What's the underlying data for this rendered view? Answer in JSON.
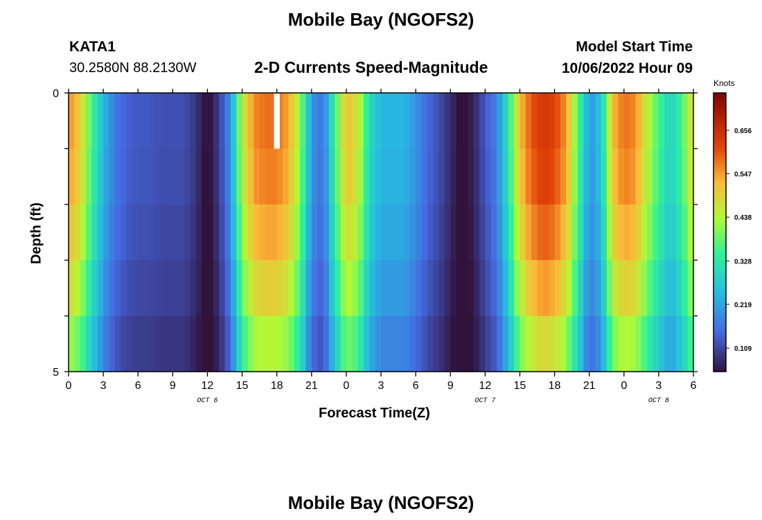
{
  "page": {
    "title": "Mobile Bay (NGOFS2)",
    "station": "KATA1",
    "coords": "30.2580N  88.2130W",
    "subtitle": "2-D Currents Speed-Magnitude",
    "model_label": "Model Start Time",
    "model_time": "10/06/2022 Hour 09",
    "bottom_title": "Mobile Bay (NGOFS2)"
  },
  "chart_data": {
    "type": "heatmap",
    "title": "2-D Currents Speed-Magnitude",
    "xlabel": "Forecast Time(Z)",
    "ylabel": "Depth (ft)",
    "x_tick_labels": [
      "0",
      "3",
      "6",
      "9",
      "12",
      "15",
      "18",
      "21",
      "0",
      "3",
      "6",
      "9",
      "12",
      "15",
      "18",
      "21",
      "0",
      "3",
      "6"
    ],
    "x_hours": [
      0,
      3,
      6,
      9,
      12,
      15,
      18,
      21,
      24,
      27,
      30,
      33,
      36,
      39,
      42,
      45,
      48,
      51,
      54
    ],
    "xlim": [
      0,
      54
    ],
    "date_labels": [
      {
        "text": "OCT 6",
        "hour": 12
      },
      {
        "text": "OCT 7",
        "hour": 36
      },
      {
        "text": "OCT 8",
        "hour": 51
      }
    ],
    "y_tick_labels": [
      "0",
      "5"
    ],
    "ylim": [
      0,
      5
    ],
    "depth_layers": [
      0,
      1,
      2,
      3,
      4
    ],
    "colorbar": {
      "label": "Knots",
      "ticks": [
        "0.109",
        "0.219",
        "0.328",
        "0.438",
        "0.547",
        "0.656"
      ],
      "tick_values": [
        0.109,
        0.219,
        0.328,
        0.438,
        0.547,
        0.656
      ],
      "range": [
        0.05,
        0.75
      ]
    },
    "profile": {
      "hours": [
        0,
        1,
        2,
        3,
        4,
        5,
        6,
        7,
        8,
        9,
        10,
        11,
        12,
        13,
        14,
        15,
        16,
        17,
        18,
        19,
        20,
        21,
        22,
        23,
        24,
        25,
        26,
        27,
        28,
        29,
        30,
        31,
        32,
        33,
        34,
        35,
        36,
        37,
        38,
        39,
        40,
        41,
        42,
        43,
        44,
        45,
        46,
        47,
        48,
        49,
        50,
        51,
        52,
        53,
        54
      ],
      "speeds": [
        0.56,
        0.5,
        0.36,
        0.24,
        0.17,
        0.14,
        0.13,
        0.13,
        0.12,
        0.12,
        0.12,
        0.09,
        0.04,
        0.1,
        0.2,
        0.45,
        0.56,
        0.58,
        0.58,
        0.54,
        0.42,
        0.2,
        0.16,
        0.35,
        0.52,
        0.47,
        0.3,
        0.24,
        0.24,
        0.24,
        0.2,
        0.15,
        0.12,
        0.08,
        0.04,
        0.07,
        0.13,
        0.18,
        0.32,
        0.52,
        0.6,
        0.64,
        0.62,
        0.55,
        0.38,
        0.2,
        0.26,
        0.52,
        0.58,
        0.56,
        0.45,
        0.36,
        0.28,
        0.36,
        0.5
      ],
      "depth_factors": [
        1.0,
        0.98,
        0.93,
        0.86,
        0.76
      ]
    },
    "missing": [
      {
        "hour": 18,
        "depth": 0
      }
    ]
  }
}
